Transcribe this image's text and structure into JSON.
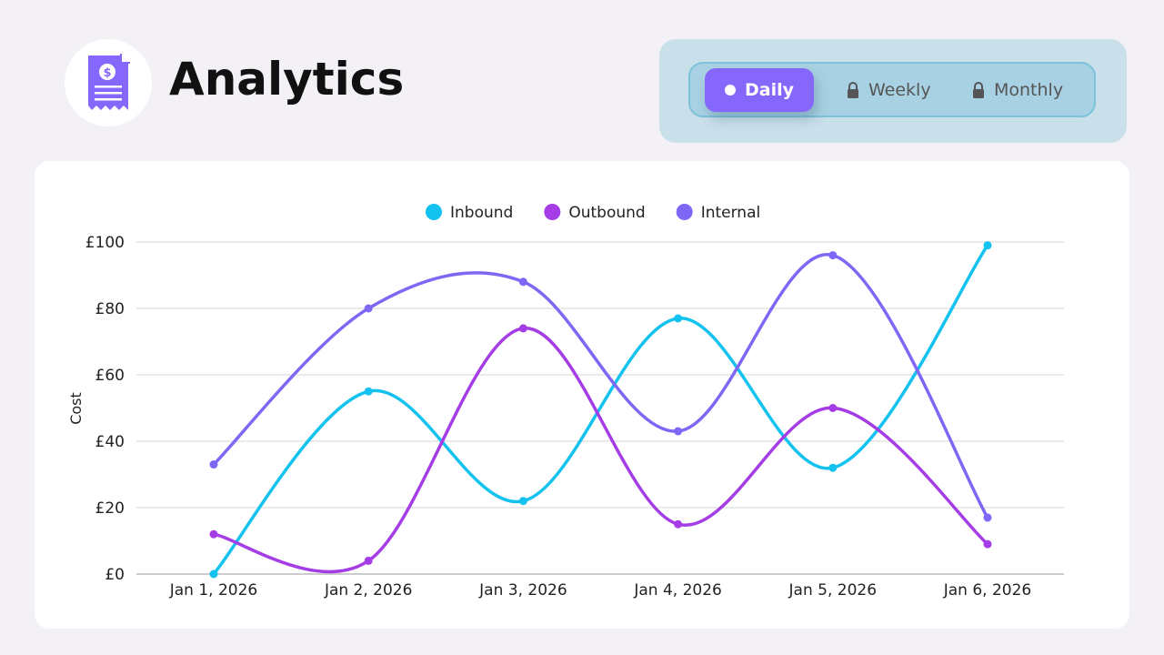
{
  "header": {
    "title": "Analytics",
    "logo_icon": "receipt-dollar-icon"
  },
  "toggle": {
    "options": [
      {
        "label": "Daily",
        "icon": "dot-icon",
        "active": true
      },
      {
        "label": "Weekly",
        "icon": "lock-icon",
        "active": false
      },
      {
        "label": "Monthly",
        "icon": "lock-icon",
        "active": false
      }
    ]
  },
  "chart_data": {
    "type": "line",
    "ylabel": "Cost",
    "xlabel": "",
    "ylim": [
      0,
      100
    ],
    "yticks": [
      "£0",
      "£20",
      "£40",
      "£60",
      "£80",
      "£100"
    ],
    "categories": [
      "Jan 1, 2026",
      "Jan 2, 2026",
      "Jan 3, 2026",
      "Jan 4, 2026",
      "Jan 5, 2026",
      "Jan 6, 2026"
    ],
    "legend_position": "top",
    "grid": "horizontal",
    "series": [
      {
        "name": "Inbound",
        "color": "#13c2ee",
        "values": [
          0,
          55,
          22,
          77,
          32,
          99
        ]
      },
      {
        "name": "Outbound",
        "color": "#a53de6",
        "values": [
          12,
          4,
          74,
          15,
          50,
          9
        ]
      },
      {
        "name": "Internal",
        "color": "#8066f4",
        "values": [
          33,
          80,
          88,
          43,
          96,
          17
        ]
      }
    ]
  }
}
